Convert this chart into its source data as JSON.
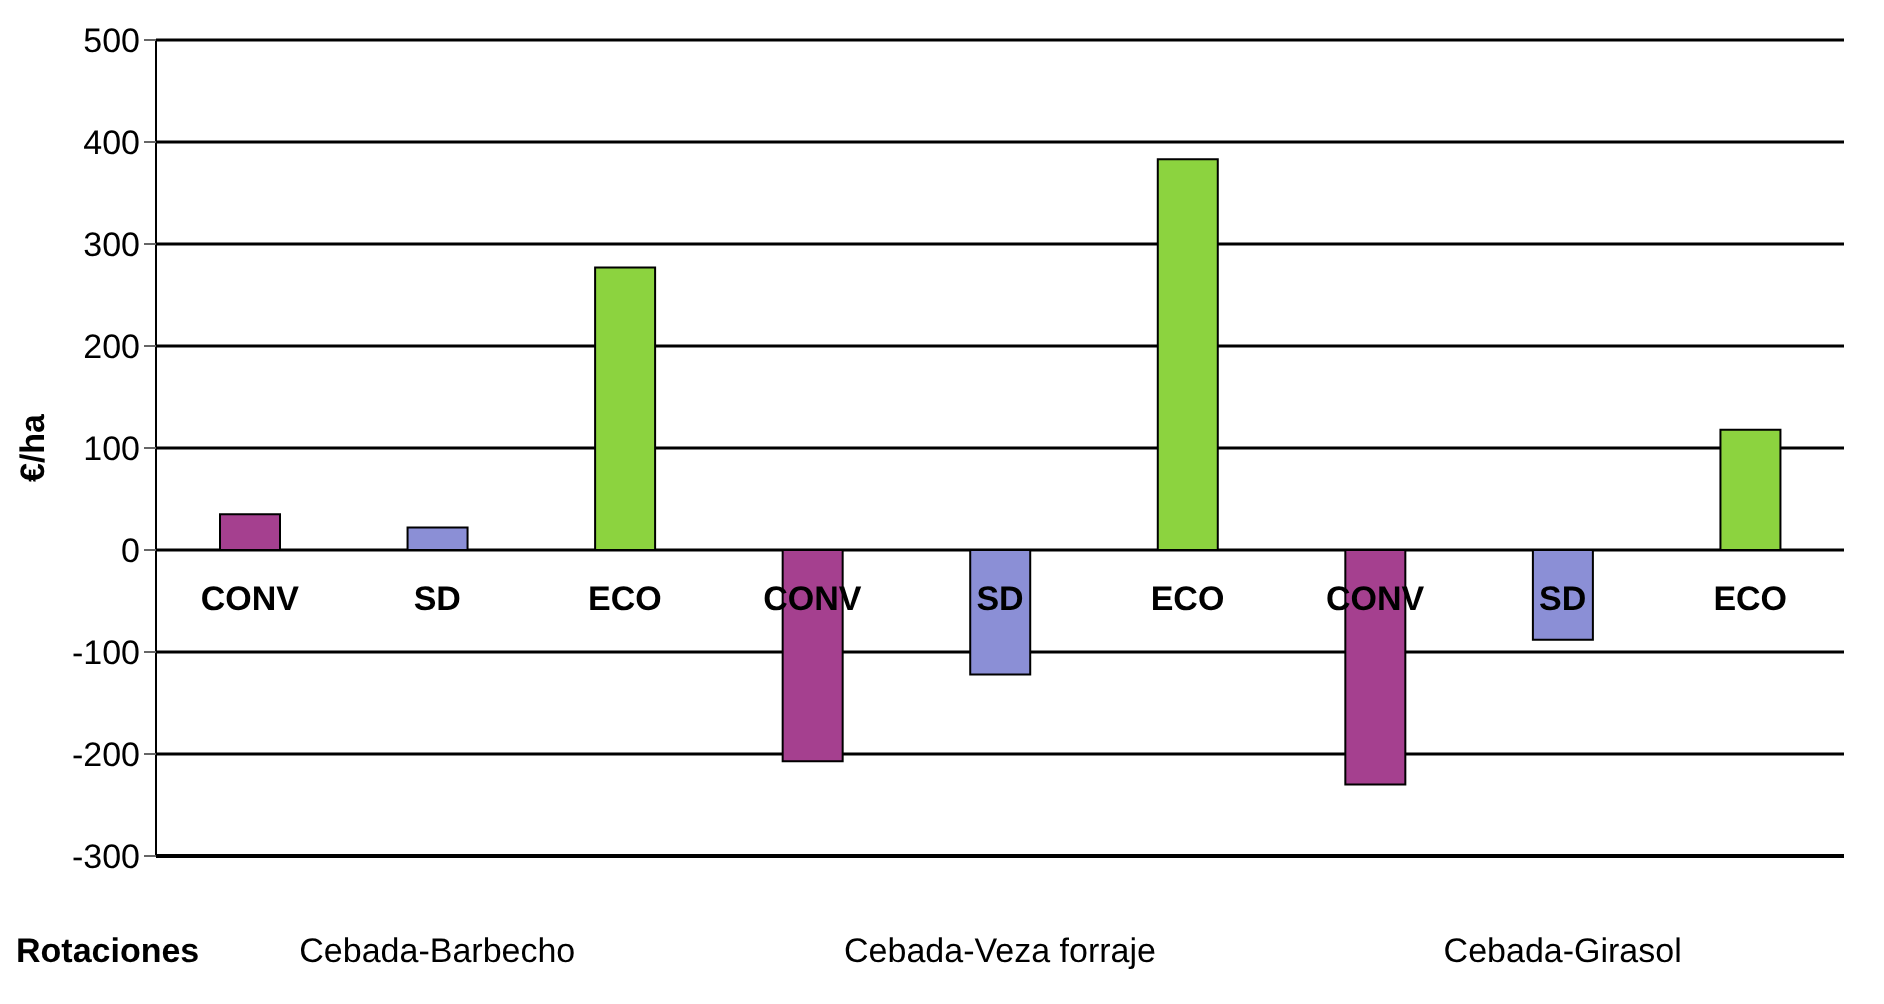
{
  "chart_data": {
    "type": "bar",
    "ylabel": "€/ha",
    "xlabel": "Rotaciones",
    "categories": [
      "CONV",
      "SD",
      "ECO",
      "CONV",
      "SD",
      "ECO",
      "CONV",
      "SD",
      "ECO"
    ],
    "values": [
      35,
      22,
      277,
      -207,
      -122,
      383,
      -230,
      -88,
      118
    ],
    "colors": [
      "#a5408f",
      "#8b8fd6",
      "#8cd33f",
      "#a5408f",
      "#8b8fd6",
      "#8cd33f",
      "#a5408f",
      "#8b8fd6",
      "#8cd33f"
    ],
    "ylim": [
      -300,
      500
    ],
    "yticks": [
      -300,
      -200,
      -100,
      0,
      100,
      200,
      300,
      400,
      500
    ],
    "grid": "y",
    "annotations": [
      "Cebada-Barbecho",
      "Cebada-Veza forraje",
      "Cebada-Girasol"
    ]
  }
}
